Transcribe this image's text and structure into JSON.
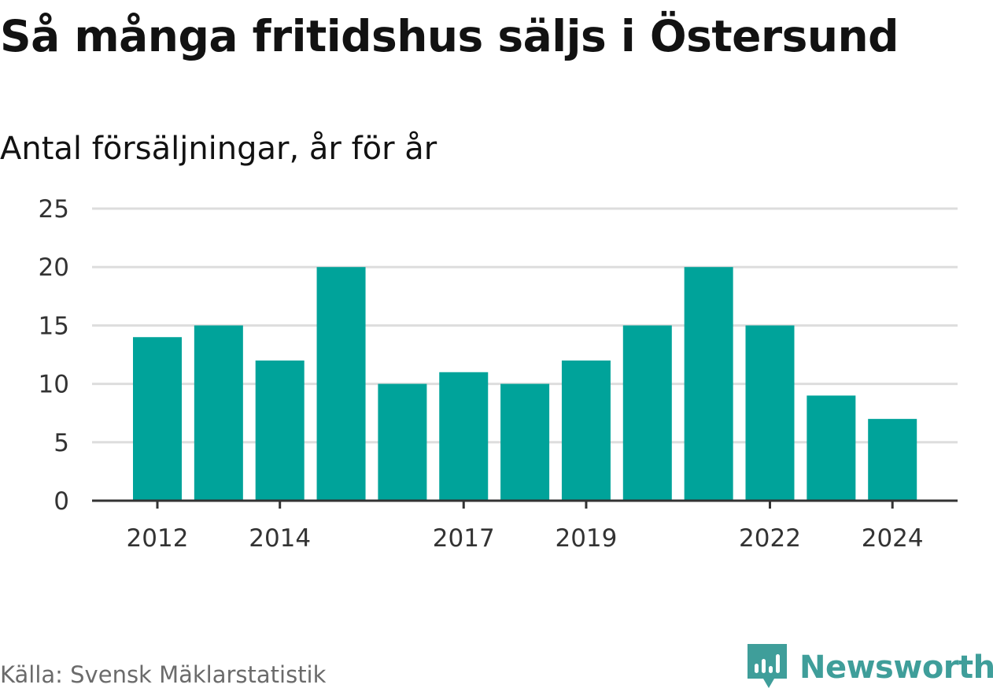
{
  "chart_data": {
    "type": "bar",
    "title": "Så många fritidshus säljs i Östersund",
    "subtitle": "Antal försäljningar, år för år",
    "categories": [
      "2012",
      "2013",
      "2014",
      "2015",
      "2016",
      "2017",
      "2018",
      "2019",
      "2020",
      "2021",
      "2022",
      "2023",
      "2024"
    ],
    "values": [
      14,
      15,
      12,
      20,
      10,
      11,
      10,
      12,
      15,
      20,
      15,
      9,
      7
    ],
    "x_tick_labels": [
      "2012",
      "2014",
      "2017",
      "2019",
      "2022",
      "2024"
    ],
    "y_ticks": [
      0,
      5,
      10,
      15,
      20,
      25
    ],
    "ylim": [
      0,
      25
    ],
    "xlabel": "",
    "ylabel": "",
    "grid": true,
    "legend": "none",
    "bar_color": "#00a39a",
    "gridline_color": "#dddddd",
    "axis_color": "#333333"
  },
  "footer": {
    "source": "Källa: Svensk Mäklarstatistik",
    "brand": "Newsworthy",
    "brand_color": "#3f9e9a",
    "brand_icon": "newsworthy-logo-icon"
  }
}
